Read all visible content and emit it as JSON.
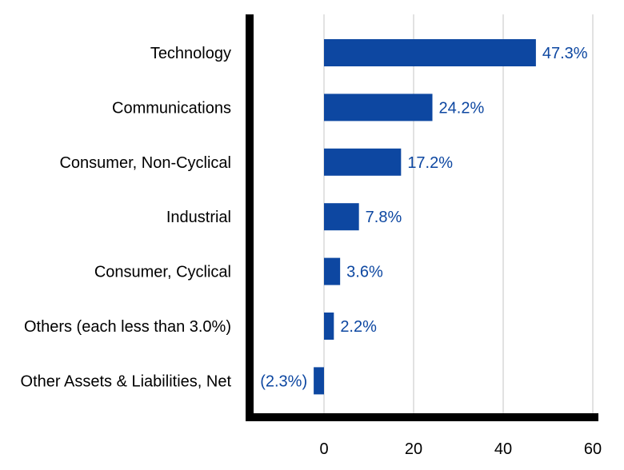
{
  "chart_data": {
    "type": "bar",
    "orientation": "horizontal",
    "categories": [
      "Technology",
      "Communications",
      "Consumer, Non-Cyclical",
      "Industrial",
      "Consumer, Cyclical",
      "Others (each less than 3.0%)",
      "Other Assets & Liabilities, Net"
    ],
    "values": [
      47.3,
      24.2,
      17.2,
      7.8,
      3.6,
      2.2,
      -2.3
    ],
    "data_labels": [
      "47.3%",
      "24.2%",
      "17.2%",
      "7.8%",
      "3.6%",
      "2.2%",
      "(2.3%)"
    ],
    "x_ticks": [
      0,
      20,
      40,
      60
    ],
    "x_tick_labels": [
      "0",
      "20",
      "40",
      "60"
    ],
    "xlim": [
      -17,
      61
    ],
    "grid": "vertical",
    "legend": "none",
    "title": "",
    "xlabel": "",
    "ylabel": "",
    "colors": {
      "bar": "#0d47a1",
      "label": "#0d47a1",
      "grid": "#d9d9d9",
      "axis": "#000000"
    }
  }
}
